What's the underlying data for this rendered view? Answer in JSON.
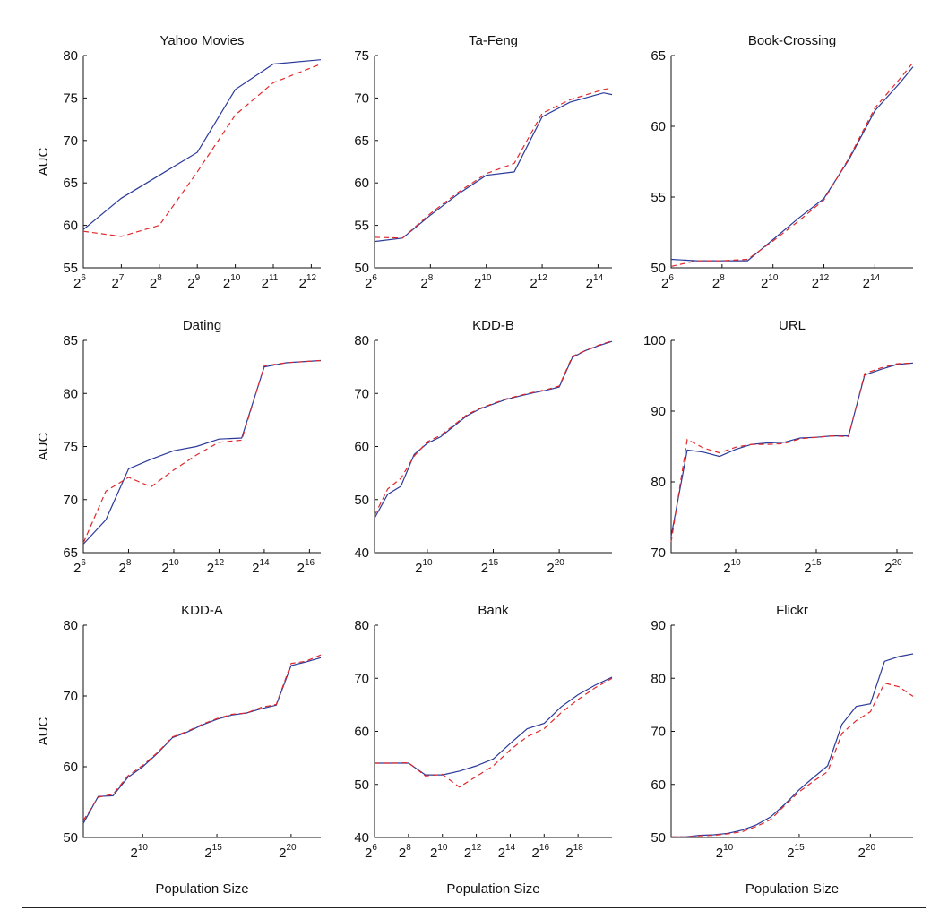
{
  "colors": {
    "solid": "#2b3a9a",
    "dashed": "#e0282a"
  },
  "chart_data": [
    {
      "type": "line",
      "title": "Yahoo Movies",
      "ylabel": "AUC",
      "xlabel": "",
      "xlim": [
        6,
        12.25
      ],
      "ylim": [
        55,
        80
      ],
      "xticks": [
        {
          "exp": "6",
          "v": 6
        },
        {
          "exp": "7",
          "v": 7
        },
        {
          "exp": "8",
          "v": 8
        },
        {
          "exp": "9",
          "v": 9
        },
        {
          "exp": "10",
          "v": 10
        },
        {
          "exp": "11",
          "v": 11
        },
        {
          "exp": "12",
          "v": 12
        }
      ],
      "yticks": [
        55,
        60,
        65,
        70,
        75,
        80
      ],
      "series": [
        {
          "style": "solid",
          "x": [
            6,
            7,
            8,
            9,
            10,
            11,
            12.25
          ],
          "y": [
            59.5,
            63.2,
            65.9,
            68.6,
            76,
            79,
            79.5
          ]
        },
        {
          "style": "dashed",
          "x": [
            6,
            7,
            8,
            9,
            10,
            11,
            12.25
          ],
          "y": [
            59.3,
            58.7,
            60,
            66.3,
            73,
            76.8,
            79
          ]
        }
      ]
    },
    {
      "type": "line",
      "title": "Ta-Feng",
      "ylabel": "",
      "xlabel": "",
      "xlim": [
        6,
        14.5
      ],
      "ylim": [
        50,
        75
      ],
      "xticks": [
        {
          "exp": "6",
          "v": 6
        },
        {
          "exp": "8",
          "v": 8
        },
        {
          "exp": "10",
          "v": 10
        },
        {
          "exp": "12",
          "v": 12
        },
        {
          "exp": "14",
          "v": 14
        }
      ],
      "yticks": [
        50,
        55,
        60,
        65,
        70,
        75
      ],
      "series": [
        {
          "style": "solid",
          "x": [
            6,
            7,
            8,
            9,
            10,
            11,
            12,
            13,
            14.2,
            14.5
          ],
          "y": [
            53.1,
            53.5,
            56.2,
            58.7,
            60.9,
            61.3,
            67.8,
            69.5,
            70.6,
            70.4
          ]
        },
        {
          "style": "dashed",
          "x": [
            6,
            7,
            8,
            9,
            10,
            11,
            12,
            13,
            14.2,
            14.5
          ],
          "y": [
            53.6,
            53.5,
            56.4,
            58.9,
            61.1,
            62.3,
            68.2,
            69.8,
            71,
            71.2
          ]
        }
      ]
    },
    {
      "type": "line",
      "title": "Book-Crossing",
      "ylabel": "",
      "xlabel": "",
      "xlim": [
        6,
        15.5
      ],
      "ylim": [
        50,
        65
      ],
      "xticks": [
        {
          "exp": "6",
          "v": 6
        },
        {
          "exp": "8",
          "v": 8
        },
        {
          "exp": "10",
          "v": 10
        },
        {
          "exp": "12",
          "v": 12
        },
        {
          "exp": "14",
          "v": 14
        }
      ],
      "yticks": [
        50,
        55,
        60,
        65
      ],
      "series": [
        {
          "style": "solid",
          "x": [
            6,
            7,
            8,
            9,
            10,
            11,
            12,
            13,
            14,
            15,
            15.5
          ],
          "y": [
            50.6,
            50.5,
            50.5,
            50.5,
            52,
            53.5,
            54.9,
            57.7,
            61.1,
            63.1,
            64.2
          ]
        },
        {
          "style": "dashed",
          "x": [
            6,
            7,
            8,
            9,
            10,
            11,
            12,
            13,
            14,
            15,
            15.5
          ],
          "y": [
            50.1,
            50.5,
            50.5,
            50.6,
            51.9,
            53.3,
            54.8,
            57.8,
            61.3,
            63.4,
            64.5
          ]
        }
      ]
    },
    {
      "type": "line",
      "title": "Dating",
      "ylabel": "AUC",
      "xlabel": "",
      "xlim": [
        6,
        16.5
      ],
      "ylim": [
        65,
        85
      ],
      "xticks": [
        {
          "exp": "6",
          "v": 6
        },
        {
          "exp": "8",
          "v": 8
        },
        {
          "exp": "10",
          "v": 10
        },
        {
          "exp": "12",
          "v": 12
        },
        {
          "exp": "14",
          "v": 14
        },
        {
          "exp": "16",
          "v": 16
        }
      ],
      "yticks": [
        65,
        70,
        75,
        80,
        85
      ],
      "series": [
        {
          "style": "solid",
          "x": [
            6,
            7,
            8,
            9,
            10,
            11,
            12,
            13,
            14,
            15,
            16.5
          ],
          "y": [
            65.8,
            68.1,
            72.9,
            73.8,
            74.6,
            75,
            75.7,
            75.8,
            82.5,
            82.9,
            83.1
          ]
        },
        {
          "style": "dashed",
          "x": [
            6,
            7,
            8,
            9,
            10,
            11,
            12,
            13,
            14,
            15,
            16.5
          ],
          "y": [
            65.9,
            70.8,
            72.1,
            71.2,
            72.8,
            74.2,
            75.4,
            75.6,
            82.6,
            82.9,
            83.1
          ]
        }
      ]
    },
    {
      "type": "line",
      "title": "KDD-B",
      "ylabel": "",
      "xlabel": "",
      "xlim": [
        6,
        24
      ],
      "ylim": [
        40,
        80
      ],
      "xticks": [
        {
          "exp": "10",
          "v": 10
        },
        {
          "exp": "15",
          "v": 15
        },
        {
          "exp": "20",
          "v": 20
        }
      ],
      "yticks": [
        40,
        50,
        60,
        70,
        80
      ],
      "series": [
        {
          "style": "solid",
          "x": [
            6,
            7,
            8,
            9,
            10,
            11,
            12,
            13,
            14,
            15,
            16,
            17,
            18,
            19,
            20,
            21,
            22,
            23,
            24
          ],
          "y": [
            46.5,
            51,
            52.5,
            58.5,
            60.6,
            61.8,
            63.8,
            65.8,
            67.1,
            68,
            68.9,
            69.5,
            70.1,
            70.6,
            71.2,
            76.8,
            78.1,
            79,
            79.8
          ]
        },
        {
          "style": "dashed",
          "x": [
            6,
            7,
            8,
            9,
            10,
            11,
            12,
            13,
            14,
            15,
            16,
            17,
            18,
            19,
            20,
            21,
            22,
            23,
            24
          ],
          "y": [
            47,
            52,
            54,
            58.2,
            60.9,
            62.1,
            64,
            66,
            67.2,
            68.1,
            69,
            69.6,
            70.2,
            70.7,
            71.4,
            77,
            78.1,
            79.1,
            79.9
          ]
        }
      ]
    },
    {
      "type": "line",
      "title": "URL",
      "ylabel": "",
      "xlabel": "",
      "xlim": [
        6,
        21
      ],
      "ylim": [
        70,
        100
      ],
      "xticks": [
        {
          "exp": "10",
          "v": 10
        },
        {
          "exp": "15",
          "v": 15
        },
        {
          "exp": "20",
          "v": 20
        }
      ],
      "yticks": [
        70,
        80,
        90,
        100
      ],
      "series": [
        {
          "style": "solid",
          "x": [
            6,
            7,
            8,
            9,
            10,
            11,
            12,
            13,
            14,
            15,
            16,
            17,
            18,
            19,
            20,
            21
          ],
          "y": [
            72.3,
            84.5,
            84.2,
            83.6,
            84.6,
            85.3,
            85.5,
            85.6,
            86.2,
            86.3,
            86.5,
            86.5,
            95.1,
            95.9,
            96.6,
            96.8
          ]
        },
        {
          "style": "dashed",
          "x": [
            6,
            7,
            8,
            9,
            10,
            11,
            12,
            13,
            14,
            15,
            16,
            17,
            18,
            19,
            20,
            21
          ],
          "y": [
            71.5,
            86,
            84.8,
            84.1,
            84.9,
            85.3,
            85.3,
            85.4,
            86.1,
            86.3,
            86.5,
            86.4,
            95.3,
            96.1,
            96.7,
            96.8
          ]
        }
      ]
    },
    {
      "type": "line",
      "title": "KDD-A",
      "ylabel": "AUC",
      "xlabel": "Population Size",
      "xlim": [
        6,
        22
      ],
      "ylim": [
        50,
        80
      ],
      "xticks": [
        {
          "exp": "10",
          "v": 10
        },
        {
          "exp": "15",
          "v": 15
        },
        {
          "exp": "20",
          "v": 20
        }
      ],
      "yticks": [
        50,
        60,
        70,
        80
      ],
      "series": [
        {
          "style": "solid",
          "x": [
            6,
            7,
            8,
            9,
            10,
            11,
            12,
            13,
            14,
            15,
            16,
            17,
            18,
            19,
            20,
            21,
            22
          ],
          "y": [
            52,
            55.8,
            55.9,
            58.5,
            60,
            61.9,
            64.1,
            64.9,
            65.9,
            66.7,
            67.3,
            67.6,
            68.2,
            68.7,
            74.3,
            74.8,
            75.4
          ]
        },
        {
          "style": "dashed",
          "x": [
            6,
            7,
            8,
            9,
            10,
            11,
            12,
            13,
            14,
            15,
            16,
            17,
            18,
            19,
            20,
            21,
            22
          ],
          "y": [
            52.4,
            55.7,
            56.1,
            58.7,
            60.2,
            62,
            64.2,
            65,
            66,
            66.8,
            67.4,
            67.6,
            68.4,
            68.8,
            74.6,
            74.9,
            75.8
          ]
        }
      ]
    },
    {
      "type": "line",
      "title": "Bank",
      "ylabel": "",
      "xlabel": "Population Size",
      "xlim": [
        6,
        20
      ],
      "ylim": [
        40,
        80
      ],
      "xticks": [
        {
          "exp": "6",
          "v": 6
        },
        {
          "exp": "8",
          "v": 8
        },
        {
          "exp": "10",
          "v": 10
        },
        {
          "exp": "12",
          "v": 12
        },
        {
          "exp": "14",
          "v": 14
        },
        {
          "exp": "16",
          "v": 16
        },
        {
          "exp": "18",
          "v": 18
        }
      ],
      "yticks": [
        40,
        50,
        60,
        70,
        80
      ],
      "series": [
        {
          "style": "solid",
          "x": [
            6,
            7,
            8,
            9,
            10,
            11,
            12,
            13,
            14,
            15,
            16,
            17,
            18,
            19,
            20
          ],
          "y": [
            54,
            54,
            54,
            51.8,
            51.8,
            52.5,
            53.5,
            54.8,
            57.7,
            60.5,
            61.5,
            64.6,
            66.9,
            68.7,
            70.2
          ]
        },
        {
          "style": "dashed",
          "x": [
            6,
            7,
            8,
            9,
            10,
            11,
            12,
            13,
            14,
            15,
            16,
            17,
            18,
            19,
            20
          ],
          "y": [
            54,
            54,
            54.1,
            51.6,
            51.9,
            49.5,
            51.5,
            53.5,
            56.5,
            59,
            60.5,
            63.5,
            66,
            68.2,
            70
          ]
        }
      ]
    },
    {
      "type": "line",
      "title": "Flickr",
      "ylabel": "",
      "xlabel": "Population Size",
      "xlim": [
        6,
        23
      ],
      "ylim": [
        50,
        90
      ],
      "xticks": [
        {
          "exp": "10",
          "v": 10
        },
        {
          "exp": "15",
          "v": 15
        },
        {
          "exp": "20",
          "v": 20
        }
      ],
      "yticks": [
        50,
        60,
        70,
        80,
        90
      ],
      "series": [
        {
          "style": "solid",
          "x": [
            6,
            7,
            8,
            9,
            10,
            11,
            12,
            13,
            14,
            15,
            16,
            17,
            18,
            19,
            20,
            21,
            22,
            23
          ],
          "y": [
            50.1,
            50.1,
            50.4,
            50.5,
            50.8,
            51.4,
            52.4,
            53.9,
            56.3,
            59,
            61.3,
            63.5,
            71.3,
            74.7,
            75.2,
            83.2,
            84.1,
            84.6
          ]
        },
        {
          "style": "dashed",
          "x": [
            6,
            7,
            8,
            9,
            10,
            11,
            12,
            13,
            14,
            15,
            16,
            17,
            18,
            19,
            20,
            21,
            22,
            23
          ],
          "y": [
            50.1,
            50.1,
            50.3,
            50.4,
            50.7,
            51.1,
            52.1,
            53.4,
            56.1,
            58.6,
            60.6,
            62.4,
            69.6,
            72,
            73.7,
            79.1,
            78.4,
            76.6
          ]
        }
      ]
    }
  ]
}
